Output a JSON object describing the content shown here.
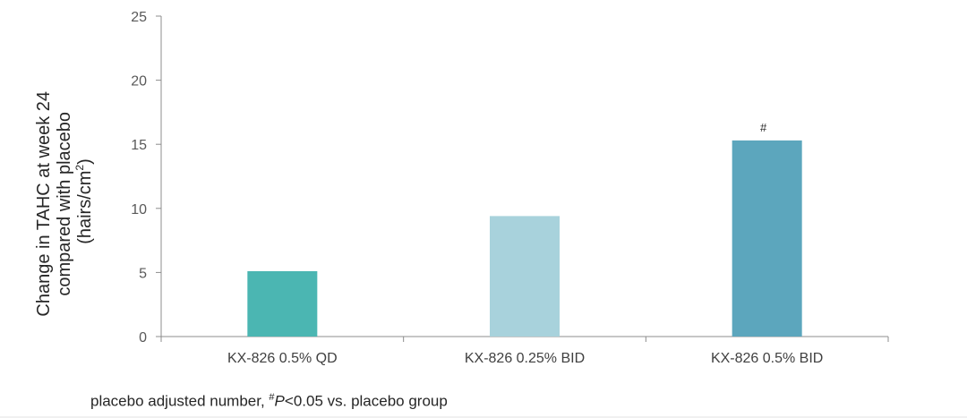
{
  "chart_data": {
    "type": "bar",
    "title": "",
    "xlabel": "",
    "ylabel_lines": [
      "Change in TAHC at week 24",
      "compared with placebo",
      "(hairs/cm",
      "2",
      ")"
    ],
    "categories": [
      "KX-826 0.5% QD",
      "KX-826 0.25% BID",
      "KX-826 0.5% BID"
    ],
    "values": [
      5.1,
      9.4,
      15.3
    ],
    "colors": [
      "#4bb6b2",
      "#a8d2dc",
      "#5ca6bd"
    ],
    "ylim": [
      0,
      25
    ],
    "yticks": [
      "0",
      "5",
      "10",
      "15",
      "20",
      "25"
    ],
    "grid": false,
    "annotations": [
      "",
      "",
      "#"
    ]
  },
  "footnote": {
    "prefix": "placebo adjusted number, ",
    "sup": "#",
    "italic": "P",
    "suffix": "<0.05 vs. placebo group"
  }
}
